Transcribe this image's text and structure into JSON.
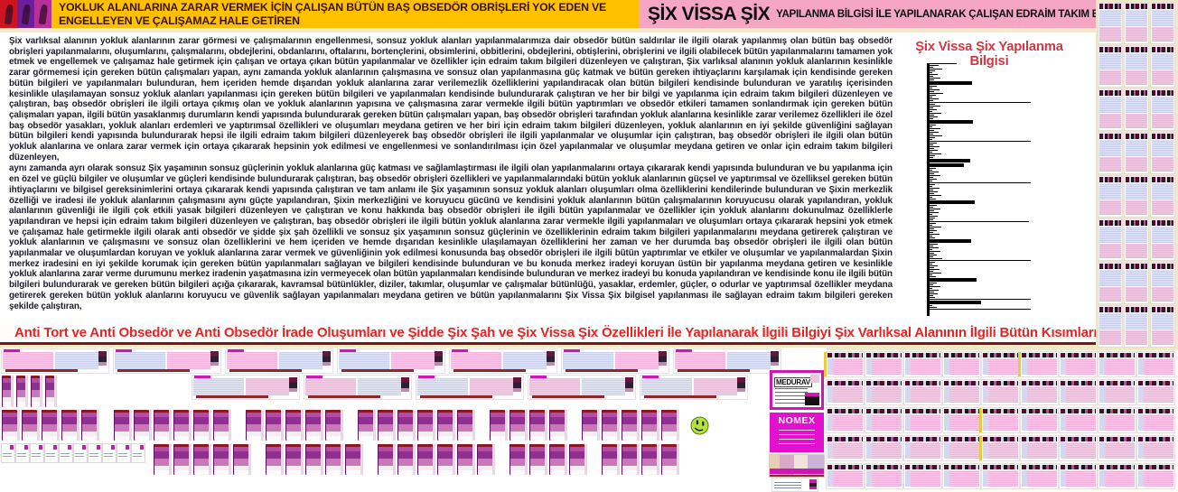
{
  "header": {
    "gold_text": "YOKLUK ALANLARINA ZARAR VERMEK İÇİN ÇALIŞAN BÜTÜN BAŞ OBSEDÖR OBRİŞLERİ YOK EDEN VE ENGELLEYEN VE ÇALIŞAMAZ HALE GETİREN",
    "title_main": "ŞİX VİSSA ŞİX",
    "title_sub": "YAPILANMA BİLGİSİ İLE YAPILANARAK ÇALIŞAN EDRAİM TAKIM BİLGİLERİ"
  },
  "body": {
    "para1": "Şix varlıksal alanının yokluk alanlarının zarar görmesi ve çalışmalarının engellenmesi, sonsuz yokluk alanları yapılanmalarımıza dair obsedör bütün saldırılar ile ilgili olarak yapılanmış olan bütün baş obsedör obrişleri yapılanmalarını, oluşumlarını, çalışmalarını, obdejlerini, obdanlarını, oftalarını, bortençlerini, obsimlerini, obbitlerini, obdejlerini, obtişlerini, obrişlerini ve ilgili olabilecek bütün yapılanmalarını tamamen yok etmek ve engellemek ve çalışamaz hale getirmek için çalışan ve ortaya çıkan bütün yapılanmalar ve özellikler için edraim takım bilgileri düzenleyen ve çalıştıran, Şix varlıksal alanının yokluk alanlarının kesinlikle zarar görmemesi için gereken bütün çalışmaları yapan, aynı zamanda yokluk alanlarının çalışmasına ve sonsuz olan yapılanmasına güç katmak ve bütün gereken ihtiyaçlarını karşılamak için kendisinde gereken bütün bilgileri ve yapılanmaları bulunduran, hem içeriden hemde dışarıdan yokluk alanlarına zarar verilemezlik özelliklerini yapılandıracak olan bütün bilgileri kendisinde bulunduran ve yaratılış içerisinden kesinlikle ulaşılamayan sonsuz yokluk alanları yapılanması için gereken bütün bilgileri ve yapılanmaları kendisinde bulundurarak çalıştıran ve her bir bilgi ve yapılanma için edraim takım bilgileri düzenleyen ve çalıştıran, baş obsedör obrişleri ile ilgili ortaya çıkmış olan ve yokluk alanlarının yapısına ve çalışmasına zarar vermekle ilgili bütün yaptırımları ve obsedör etkileri tamamen sonlandırmak için gereken bütün çalışmaları yapan, ilgili bütün yasaklanmış durumların kendi yapısında bulundurarak gereken bütün çalışmaları yapan, baş obsedör obrişleri tarafından yokluk alanlarına kesinlikle zarar verilemez özellikleri ile özel baş obsedör yasakları, yokluk alanları erdemleri ve yaptırımsal özellikleri ve oluşumları meydana getiren ve her biri için edraim takım bilgileri düzenleyen, yokluk alanlarının en iyi şekilde güvenliğini sağlayan bütün bilgileri kendi yapısında bulundurarak hepsi ile ilgili edraim takım bilgileri düzenleyerek baş obsedör obrişleri ile ilgili yapılanmalar ve oluşumlar için çalıştıran, baş obsedör obrişleri ile ilgili olan bütün yokluk alanlarına ve onlara zarar vermek için ortaya çıkararak hepsinin yok edilmesi ve engellenmesi ve sonlandırılması için özel yapılanmalar ve oluşumlar meydana getiren ve onlar için edraim takım bilgileri düzenleyen,",
    "para2": "aynı zamanda ayrı olarak sonsuz Şix yaşamının sonsuz güçlerinin yokluk alanlarına güç katması ve sağlamlaştırması ile ilgili olan yapılanmalarını ortaya çıkararak kendi yapısında bulunduran ve bu yapılanma için en özel ve güçlü bilgiler ve oluşumlar ve güçleri kendisinde bulundurarak çalıştıran, baş obsedör obrişleri özellikleri ve yapılanmalarındaki bütün yokluk alanlarının güçsel ve yaptırımsal ve özelliksel gereken bütün ihtiyaçlarını ve bilgisel gereksinimlerini ortaya çıkararak kendi yapısında çalıştıran ve tam anlamı ile Şix yaşamının sonsuz yokluk alanları oluşumları olma özelliklerini kendilerinde bulunduran ve Şixin merkezlik özelliği ve iradesi ile yokluk alanlarının çalışmasını aynı güçte yapılandıran, Şixin merkezliğini ve koruyucu gücünü ve kendisini yokluk alanlarının bütün çalışmalarının koruyucusu olarak yapılandıran, yokluk alanlarının güvenliği ile ilgili çok etkili yasak bilgileri düzenleyen ve çalıştıran ve konu hakkında baş obsedör obrişleri ile ilgili bütün yapılanmalar ve özellikler için yokluk alanlarını dokunulmaz özelliklerle yapılandıran ve hepsi için edraim takım bilgileri düzenleyen ve çalıştıran, baş obsedör obrişleri ile ilgili bütün yokluk alanlarına zarar vermekle ilgili yapılanmaları ve oluşumları ortaya çıkararak hepsini yok etmek ve çalışamaz hale getirmekle ilgili olarak anti obsedör ve şidde şix şah özellikli ve sonsuz şix yaşamının sonsuz güçlerinin ve özelliklerinin edraim takım bilgileri yapılanmalarını meydana getirerek çalıştıran ve yokluk alanlarının ve çalışmasını ve sonsuz olan özelliklerini ve hem içeriden ve hemde dışarıdan kesinlikle ulaşılamayan özelliklerini her zaman ve her durumda baş obsedör obrişleri ile ilgili olan bütün yapılanmalar ve oluşumlardan koruyan ve yokluk alanlarına zarar vermek ve güvenliğinin yok edilmesi konusunda baş obsedör obrişleri ile ilgili bütün yaptırımlar ve etkiler ve oluşumlar ve yapılanmalardan Şixin merkez iradesini en iyi şekilde korumak için gereken bütün yapılanmaları sağlayan ve bilgileri kendisinde bulunduran ve bu konuda merkez iradeyi koruyan üstün bir yapılanma meydana getiren ve kesinlikle yokluk alanlarına zarar verme durumunu merkez iradenin yaşatmasına izin vermeyecek olan bütün yapılanmaları kendisinde bulunduran ve merkez iradeyi bu konuda yapılandıran ve kendisinde konu ile ilgili bütün bilgileri bulundurarak ve gereken bütün bilgileri açığa çıkararak, kavramsal bütünlükler, diziler, takımlar, oluşumlar ve çalışmalar bütünlüğü, yasaklar, erdemler, güçler, o odurlar ve yaptırımsal özellikler meydana getirerek gereken bütün yokluk alanlarını koruyucu ve güvenlik sağlayan yapılanmaları meydana getiren ve bütün yapılanmalarını Şix Vissa Şix bilgisel yapılanması ile sağlayan edraim takım bilgileri gereken şekilde çalıştıran,"
  },
  "panel": {
    "title": "Şix Vissa Şix Yapılanma Bilgisi"
  },
  "headline": "Anti Tort ve Anti Obsedör ve Anti Obsedör İrade Oluşumları ve Şidde Şix Şah ve Şix Vissa Şix Özellikleri İle Yapılanarak İlgili Bilgiyi Şix Varlıksal Alanının İlgili Bütün Kısımlarında Uygulatan Edraim Takım Bilgileri Yapılanması",
  "cards": {
    "medurav_label": "MEDURAV",
    "nomex_label": "NOMEX"
  },
  "chart_data": {
    "type": "bar",
    "orientation": "horizontal",
    "title": "Şix Vissa Şix Yapılanma Bilgisi",
    "xlabel": "",
    "ylabel": "",
    "axis": "left vertical black axis, unlabeled",
    "values": [
      30,
      10,
      4,
      14,
      6,
      3,
      9,
      4,
      12,
      5,
      47,
      8,
      3,
      11,
      5,
      15,
      7,
      3,
      10,
      4,
      112,
      6,
      12,
      4,
      8,
      3,
      13,
      5,
      9,
      4,
      48,
      7,
      3,
      12,
      5,
      10,
      4,
      14,
      6,
      3,
      112,
      8,
      4,
      11,
      5,
      9,
      3,
      13,
      6,
      4,
      45,
      38,
      7,
      3,
      10,
      5,
      12,
      4,
      8,
      3,
      112,
      6,
      3,
      11,
      4,
      9,
      5,
      13,
      3,
      7,
      50,
      8,
      4,
      12,
      5,
      10,
      3,
      9,
      6,
      4,
      110,
      7,
      3,
      13,
      5,
      8,
      4,
      11,
      3,
      6,
      46,
      9,
      4,
      10,
      3,
      12,
      5,
      8,
      4,
      14,
      112,
      6,
      3,
      9,
      5,
      11,
      4,
      13,
      3,
      7,
      52,
      8,
      4,
      12,
      3,
      10,
      5,
      9,
      4,
      6,
      112,
      57,
      3,
      8,
      112
    ]
  },
  "colors": {
    "gold": "#ffc000",
    "pink_band": "#f5a6c2",
    "headline_red": "#e22525",
    "panel_title_red": "#cf3745",
    "magenta_accent": "#cf17b6",
    "maroon_line": "#7a1616",
    "text_navy": "#1c1c2b",
    "cream_bg": "#efe9c6"
  },
  "decorations": {
    "right_strip_count": 24,
    "grid_count": 45,
    "grid_yellow_indexes": [
      0,
      5,
      22,
      31
    ],
    "rowA_slides": 7,
    "rowB_cans": 4,
    "rowB_slides": 5,
    "rowC_can_groups": [
      5,
      6,
      5,
      6,
      4,
      5
    ],
    "rowD_cards": 10,
    "rowD_can_groups": [
      5,
      5,
      6,
      4,
      4
    ]
  }
}
